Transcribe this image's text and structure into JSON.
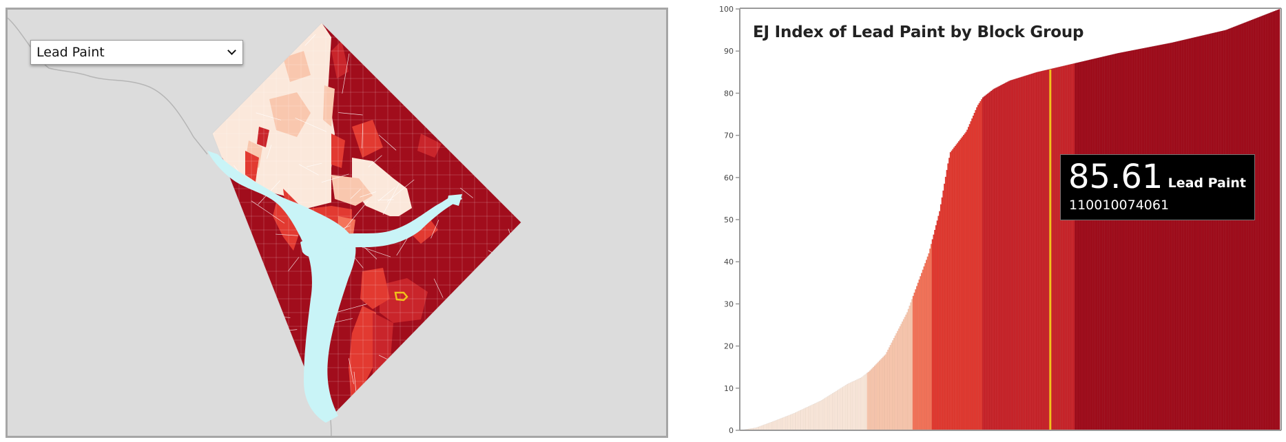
{
  "map": {
    "layer_select": {
      "selected": "Lead Paint"
    },
    "colors": {
      "background": "#dcdcdc",
      "water": "#c9f4f7",
      "boundary": "#ffffff",
      "highlight": "#f0c21b",
      "classes": [
        "#fbe8db",
        "#f9c7ae",
        "#f4745a",
        "#e23a31",
        "#c9252b",
        "#a10d1c"
      ]
    }
  },
  "chart": {
    "title": "EJ Index of Lead Paint by Block Group",
    "tooltip": {
      "value": "85.61",
      "layer": "Lead Paint",
      "block_group": "110010074061"
    },
    "colors": {
      "highlight_line": "#f0c21b"
    }
  },
  "chart_data": {
    "type": "bar",
    "title": "EJ Index of Lead Paint by Block Group",
    "xlabel": "",
    "ylabel": "",
    "ylim": [
      0,
      100
    ],
    "yticks": [
      "0",
      "10",
      "20",
      "30",
      "40",
      "50",
      "60",
      "70",
      "80",
      "90",
      "100"
    ],
    "sorted_ascending": true,
    "curve_x_fraction": [
      0.0,
      0.03,
      0.06,
      0.1,
      0.15,
      0.2,
      0.225,
      0.24,
      0.27,
      0.29,
      0.31,
      0.33,
      0.35,
      0.37,
      0.385,
      0.39,
      0.42,
      0.43,
      0.44,
      0.45,
      0.47,
      0.5,
      0.55,
      0.6,
      0.65,
      0.7,
      0.8,
      0.9,
      1.0
    ],
    "curve_y_values": [
      0,
      0.6,
      2,
      4,
      7,
      11,
      12.5,
      14,
      18,
      23,
      28,
      35,
      42,
      52,
      63,
      66,
      71,
      74,
      77,
      79,
      81,
      83,
      85,
      86.5,
      88,
      89.5,
      92,
      95,
      100
    ],
    "class_breaks_x_fraction": [
      0.0,
      0.235,
      0.32,
      0.355,
      0.45,
      0.62,
      1.0
    ],
    "highlight": {
      "x_fraction": 0.575,
      "value": 85.61,
      "block_group": "110010074061",
      "layer": "Lead Paint"
    }
  }
}
